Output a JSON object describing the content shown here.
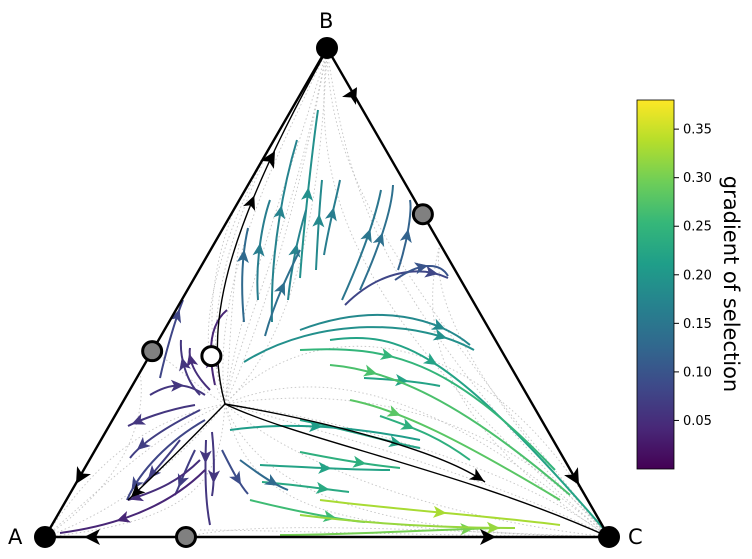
{
  "simplex": {
    "vertices": [
      {
        "name": "A"
      },
      {
        "name": "B"
      },
      {
        "name": "C"
      }
    ],
    "fixed_points": [
      {
        "kind": "stable",
        "fill": "#000000",
        "at": "A",
        "bary": [
          1,
          0,
          0
        ]
      },
      {
        "kind": "stable",
        "fill": "#000000",
        "at": "B",
        "bary": [
          0,
          1,
          0
        ]
      },
      {
        "kind": "stable",
        "fill": "#000000",
        "at": "C",
        "bary": [
          0,
          0,
          1
        ]
      },
      {
        "kind": "saddle",
        "fill": "#808080",
        "at": "edge A-B",
        "bary": [
          0.62,
          0.38,
          0
        ]
      },
      {
        "kind": "saddle",
        "fill": "#808080",
        "at": "edge B-C",
        "bary": [
          0,
          0.66,
          0.34
        ]
      },
      {
        "kind": "saddle",
        "fill": "#808080",
        "at": "edge A-C",
        "bary": [
          0.75,
          0,
          0.25
        ]
      },
      {
        "kind": "unstable",
        "fill": "#ffffff",
        "at": "interior",
        "bary": [
          0.52,
          0.37,
          0.11
        ]
      }
    ]
  },
  "colorbar": {
    "title": "gradient of selection",
    "min": 0.0,
    "max": 0.38,
    "ticks": [
      "0.05",
      "0.10",
      "0.15",
      "0.20",
      "0.25",
      "0.30",
      "0.35"
    ],
    "colormap": "viridis",
    "stops": [
      "#440154",
      "#482878",
      "#3e4989",
      "#31688e",
      "#26828e",
      "#1f9e89",
      "#35b779",
      "#6ece58",
      "#b5de2b",
      "#fde725"
    ]
  },
  "colors": {
    "edge": "#000000",
    "trajectory_background": "#b5b5b5",
    "separatrix": "#000000"
  }
}
